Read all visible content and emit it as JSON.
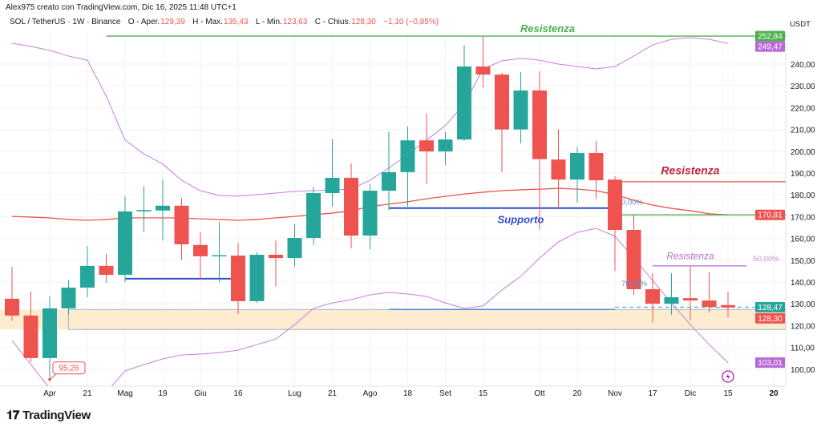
{
  "header": {
    "author_line": "Alex975 creato con TradingView.com, Dic 16, 2025 11:48 UTC+1",
    "symbol": "SOL / TetherUS · 1W · Binance",
    "open_label": "O - Aper.",
    "open": "129,39",
    "high_label": "H - Max.",
    "high": "135,43",
    "low_label": "L - Min.",
    "low": "123,63",
    "close_label": "C - Chius.",
    "close": "128,30",
    "change": "−1,10 (−0,85%)"
  },
  "footer": {
    "logo_text": "TradingView",
    "logo_mark": "17"
  },
  "colors": {
    "up": "#26a69a",
    "down": "#ef5350",
    "band": "#c77fd8",
    "basis": "#ef5350",
    "support": "#2f4fc4",
    "resistance_green": "#4caf50",
    "zone": "#fde9c8"
  },
  "chart_data": {
    "type": "candlestick",
    "currency": "USDT",
    "ylim": [
      96,
      256
    ],
    "y_ticks": [
      "100,00",
      "110,00",
      "120,00",
      "130,00",
      "140,00",
      "150,00",
      "160,00",
      "170,00",
      "180,00",
      "190,00",
      "200,00",
      "210,00",
      "220,00",
      "230,00",
      "240,00"
    ],
    "y_tick_values": [
      100,
      110,
      120,
      130,
      140,
      150,
      160,
      170,
      180,
      190,
      200,
      210,
      220,
      230,
      240
    ],
    "x_ticks": [
      {
        "label": "Apr",
        "date": "2025-04-07"
      },
      {
        "label": "21",
        "date": "2025-04-21"
      },
      {
        "label": "Mag",
        "date": "2025-05-05"
      },
      {
        "label": "19",
        "date": "2025-05-19"
      },
      {
        "label": "Giu",
        "date": "2025-06-02"
      },
      {
        "label": "16",
        "date": "2025-06-16"
      },
      {
        "label": "Lug",
        "date": "2025-07-07"
      },
      {
        "label": "21",
        "date": "2025-07-21"
      },
      {
        "label": "Ago",
        "date": "2025-08-04"
      },
      {
        "label": "18",
        "date": "2025-08-18"
      },
      {
        "label": "Set",
        "date": "2025-09-01"
      },
      {
        "label": "15",
        "date": "2025-09-15"
      },
      {
        "label": "Ott",
        "date": "2025-10-06"
      },
      {
        "label": "20",
        "date": "2025-10-20"
      },
      {
        "label": "Nov",
        "date": "2025-11-03"
      },
      {
        "label": "17",
        "date": "2025-11-17"
      },
      {
        "label": "Dic",
        "date": "2025-12-01"
      },
      {
        "label": "15",
        "date": "2025-12-15"
      },
      {
        "label": "20",
        "date": "2026-01-01",
        "bold": true
      }
    ],
    "candles": [
      {
        "date": "2025-03-24",
        "o": 132.3,
        "h": 147.0,
        "l": 122.4,
        "c": 124.6
      },
      {
        "date": "2025-03-31",
        "o": 124.6,
        "h": 135.6,
        "l": 103.2,
        "c": 105.1
      },
      {
        "date": "2025-04-07",
        "o": 105.1,
        "h": 133.4,
        "l": 95.26,
        "c": 127.9
      },
      {
        "date": "2025-04-14",
        "o": 127.9,
        "h": 141.0,
        "l": 125.0,
        "c": 137.4
      },
      {
        "date": "2025-04-21",
        "o": 137.4,
        "h": 156.5,
        "l": 133.0,
        "c": 147.4
      },
      {
        "date": "2025-04-28",
        "o": 147.4,
        "h": 153.0,
        "l": 139.6,
        "c": 143.3
      },
      {
        "date": "2025-05-05",
        "o": 143.3,
        "h": 179.3,
        "l": 140.0,
        "c": 172.4
      },
      {
        "date": "2025-05-12",
        "o": 172.4,
        "h": 184.0,
        "l": 163.0,
        "c": 173.0
      },
      {
        "date": "2025-05-19",
        "o": 172.8,
        "h": 187.0,
        "l": 159.0,
        "c": 175.0
      },
      {
        "date": "2025-05-26",
        "o": 175.0,
        "h": 178.6,
        "l": 150.0,
        "c": 157.3
      },
      {
        "date": "2025-06-02",
        "o": 157.0,
        "h": 163.0,
        "l": 141.0,
        "c": 151.8
      },
      {
        "date": "2025-06-09",
        "o": 152.0,
        "h": 167.6,
        "l": 140.0,
        "c": 152.3
      },
      {
        "date": "2025-06-16",
        "o": 152.1,
        "h": 158.0,
        "l": 125.3,
        "c": 131.2
      },
      {
        "date": "2025-06-23",
        "o": 131.2,
        "h": 153.6,
        "l": 130.4,
        "c": 152.5
      },
      {
        "date": "2025-06-30",
        "o": 152.5,
        "h": 159.0,
        "l": 138.0,
        "c": 151.0
      },
      {
        "date": "2025-07-07",
        "o": 151.0,
        "h": 166.5,
        "l": 147.0,
        "c": 160.2
      },
      {
        "date": "2025-07-14",
        "o": 160.2,
        "h": 183.8,
        "l": 157.0,
        "c": 180.8
      },
      {
        "date": "2025-07-21",
        "o": 180.8,
        "h": 205.5,
        "l": 174.7,
        "c": 187.8
      },
      {
        "date": "2025-07-28",
        "o": 187.8,
        "h": 194.4,
        "l": 155.4,
        "c": 161.3
      },
      {
        "date": "2025-08-04",
        "o": 161.3,
        "h": 184.9,
        "l": 155.0,
        "c": 181.9
      },
      {
        "date": "2025-08-11",
        "o": 181.9,
        "h": 209.0,
        "l": 173.0,
        "c": 190.4
      },
      {
        "date": "2025-08-18",
        "o": 190.4,
        "h": 211.3,
        "l": 174.7,
        "c": 205.0
      },
      {
        "date": "2025-08-25",
        "o": 205.0,
        "h": 217.2,
        "l": 184.9,
        "c": 199.9
      },
      {
        "date": "2025-09-01",
        "o": 199.9,
        "h": 209.0,
        "l": 193.7,
        "c": 205.4
      },
      {
        "date": "2025-09-08",
        "o": 205.4,
        "h": 248.8,
        "l": 204.7,
        "c": 238.9
      },
      {
        "date": "2025-09-15",
        "o": 238.9,
        "h": 252.5,
        "l": 229.3,
        "c": 235.2
      },
      {
        "date": "2025-09-22",
        "o": 235.2,
        "h": 236.0,
        "l": 190.4,
        "c": 210.0
      },
      {
        "date": "2025-09-29",
        "o": 210.0,
        "h": 236.3,
        "l": 203.6,
        "c": 227.9
      },
      {
        "date": "2025-10-06",
        "o": 227.9,
        "h": 236.7,
        "l": 164.0,
        "c": 196.4
      },
      {
        "date": "2025-10-13",
        "o": 196.2,
        "h": 210.0,
        "l": 173.5,
        "c": 187.0
      },
      {
        "date": "2025-10-20",
        "o": 187.0,
        "h": 201.8,
        "l": 176.4,
        "c": 199.2
      },
      {
        "date": "2025-10-27",
        "o": 199.2,
        "h": 204.7,
        "l": 178.2,
        "c": 186.7
      },
      {
        "date": "2025-11-03",
        "o": 187.0,
        "h": 188.5,
        "l": 145.0,
        "c": 163.9
      },
      {
        "date": "2025-11-10",
        "o": 163.9,
        "h": 170.9,
        "l": 134.0,
        "c": 136.7
      },
      {
        "date": "2025-11-17",
        "o": 136.7,
        "h": 144.0,
        "l": 121.3,
        "c": 130.0
      },
      {
        "date": "2025-11-24",
        "o": 130.0,
        "h": 144.0,
        "l": 125.0,
        "c": 133.0
      },
      {
        "date": "2025-12-01",
        "o": 132.6,
        "h": 147.4,
        "l": 122.4,
        "c": 131.5
      },
      {
        "date": "2025-12-08",
        "o": 131.5,
        "h": 144.4,
        "l": 126.0,
        "c": 128.5
      },
      {
        "date": "2025-12-15",
        "o": 129.39,
        "h": 135.43,
        "l": 123.63,
        "c": 128.3
      }
    ],
    "bollinger": {
      "upper": [
        249.6,
        248.1,
        246.3,
        243.7,
        241.8,
        225.3,
        205.1,
        198.8,
        194.1,
        186.7,
        181.9,
        179.7,
        179.4,
        180.1,
        180.8,
        181.6,
        181.9,
        182.3,
        182.6,
        186.7,
        192.3,
        198.5,
        205.1,
        211.8,
        221.6,
        237.8,
        241.5,
        242.6,
        241.8,
        240.0,
        238.9,
        237.8,
        238.9,
        243.7,
        248.8,
        251.4,
        252.1,
        251.4,
        249.47
      ],
      "basis": [
        170.1,
        169.8,
        169.4,
        168.7,
        168.3,
        168.7,
        169.4,
        169.4,
        169.4,
        169.4,
        169.0,
        168.7,
        168.3,
        168.7,
        169.4,
        170.1,
        170.9,
        171.6,
        172.7,
        174.6,
        175.7,
        176.8,
        178.2,
        179.3,
        180.4,
        181.2,
        181.9,
        182.3,
        182.6,
        183.0,
        182.6,
        181.9,
        180.1,
        177.5,
        175.3,
        173.8,
        172.7,
        171.3,
        170.81
      ],
      "lower": [
        113.2,
        102.1,
        91.1,
        83.8,
        81.9,
        89.3,
        99.2,
        102.1,
        104.7,
        106.5,
        106.9,
        107.6,
        108.7,
        111.3,
        113.8,
        120.4,
        127.9,
        130.4,
        131.9,
        134.1,
        135.2,
        134.5,
        133.4,
        130.4,
        127.9,
        129.0,
        136.3,
        142.6,
        151.0,
        158.4,
        162.8,
        164.6,
        161.0,
        151.0,
        140.7,
        130.4,
        120.4,
        111.3,
        103.01
      ]
    },
    "drawings": {
      "lines": [
        {
          "price": 252.84,
          "from": "2025-04-28",
          "to": "edge",
          "color": "#4caf50",
          "label": "Resistenza",
          "label_date": "2025-10-06"
        },
        {
          "price": 186.0,
          "from": "2025-11-03",
          "to": "edge",
          "color": "#ef5350",
          "label": "Resistenza",
          "label_date": "2025-12-01",
          "label_price": 189.5
        },
        {
          "price": 170.81,
          "from": "2025-11-03",
          "to": "edge",
          "color": "#4caf50"
        },
        {
          "price": 173.9,
          "from": "2025-08-11",
          "to": "2025-11-03",
          "color": "#2f4fc4",
          "label": "Supporto",
          "label_date": "2025-09-29",
          "label_price": 167.0
        },
        {
          "price": 141.5,
          "from": "2025-05-05",
          "to": "2025-06-16",
          "color": "#2f4fc4"
        },
        {
          "price": 127.4,
          "from": "2025-08-11",
          "to": "2025-11-03",
          "color": "#3d7fd9"
        },
        {
          "price": 147.4,
          "from": "2025-11-17",
          "to": "2025-12-22",
          "color": "#b86ad6",
          "label": "Resistenza",
          "label_date": "2025-12-01",
          "label_price": 150.5
        }
      ],
      "zone": {
        "top": 127.4,
        "bottom": 118.2,
        "from": "2025-04-14"
      },
      "dashed_price": 128.47,
      "fib_labels": [
        {
          "text": "0,00%",
          "price": 175.5,
          "date": "2025-11-03"
        },
        {
          "text": "78,60%",
          "price": 138.2,
          "date": "2025-11-03"
        },
        {
          "text": "50,00%",
          "price": 149.6,
          "date": "2025-12-22"
        }
      ],
      "low_callout": "95,26"
    },
    "price_tags": [
      {
        "text": "252,84",
        "price": 252.84,
        "color": "#4caf50"
      },
      {
        "text": "249,47",
        "price": 249.47,
        "color": "#b86ad6"
      },
      {
        "text": "170,81",
        "price": 170.81,
        "color": "#ef5350"
      },
      {
        "text": "128,47",
        "price": 128.47,
        "color": "#26a69a"
      },
      {
        "text": "128,30",
        "price": 128.3,
        "color": "#ef5350"
      },
      {
        "text": "103,01",
        "price": 103.01,
        "color": "#b86ad6"
      }
    ]
  }
}
